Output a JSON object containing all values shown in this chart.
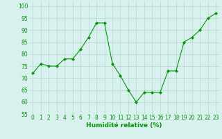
{
  "x": [
    0,
    1,
    2,
    3,
    4,
    5,
    6,
    7,
    8,
    9,
    10,
    11,
    12,
    13,
    14,
    15,
    16,
    17,
    18,
    19,
    20,
    21,
    22,
    23
  ],
  "y": [
    72,
    76,
    75,
    75,
    78,
    78,
    82,
    87,
    93,
    93,
    76,
    71,
    65,
    60,
    64,
    64,
    64,
    73,
    73,
    85,
    87,
    90,
    95,
    97
  ],
  "line_color": "#009900",
  "marker": "D",
  "marker_size": 2.0,
  "background_color": "#d8f0ee",
  "grid_color": "#b0d8cc",
  "xlabel": "Humidité relative (%)",
  "xlabel_color": "#009900",
  "xlabel_fontsize": 6.5,
  "tick_color": "#009900",
  "tick_fontsize": 5.5,
  "ylim": [
    55,
    102
  ],
  "xlim": [
    -0.5,
    23.5
  ],
  "yticks": [
    55,
    60,
    65,
    70,
    75,
    80,
    85,
    90,
    95,
    100
  ],
  "xticks": [
    0,
    1,
    2,
    3,
    4,
    5,
    6,
    7,
    8,
    9,
    10,
    11,
    12,
    13,
    14,
    15,
    16,
    17,
    18,
    19,
    20,
    21,
    22,
    23
  ]
}
